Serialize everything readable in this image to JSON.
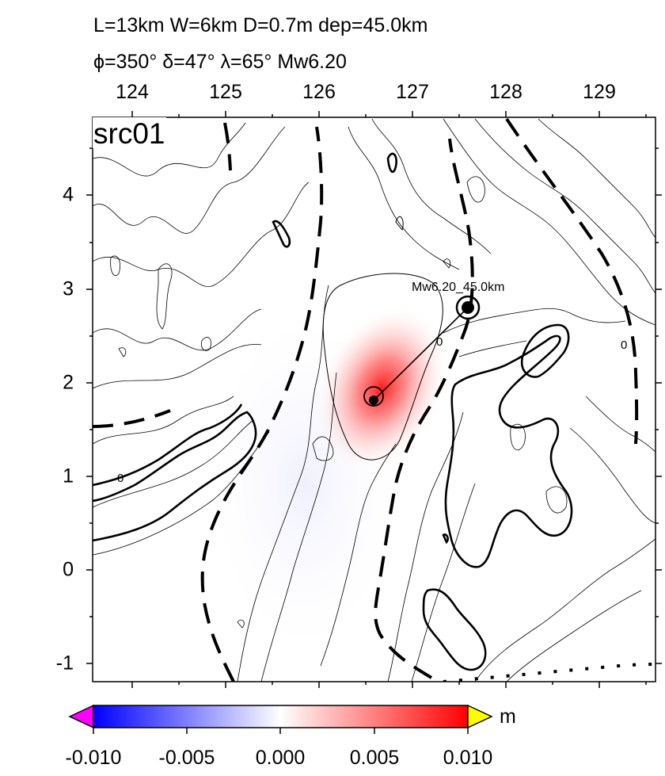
{
  "header": {
    "line1": "L=13km W=6km D=0.7m dep=45.0km",
    "line2": "ϕ=350° δ=47° λ=65° Mw6.20"
  },
  "panel_title": "src01",
  "map": {
    "x_ticks": [
      "124",
      "125",
      "126",
      "127",
      "128",
      "129"
    ],
    "y_ticks": [
      "4",
      "3",
      "2",
      "1",
      "0",
      "-1"
    ],
    "source_label": "Mw6.20_45.0km",
    "contour_label": "0"
  },
  "colorbar": {
    "unit": "m",
    "tick_labels": [
      "-0.010",
      "-0.005",
      "0.000",
      "0.005",
      "0.010"
    ],
    "low_color": "#0000ff",
    "mid_color": "#ffffff",
    "high_color": "#ff0000",
    "under_color": "#ff00ff",
    "over_color": "#ffff00"
  },
  "colors": {
    "deformation_peak": "#ff2020",
    "lines": "#000000"
  }
}
